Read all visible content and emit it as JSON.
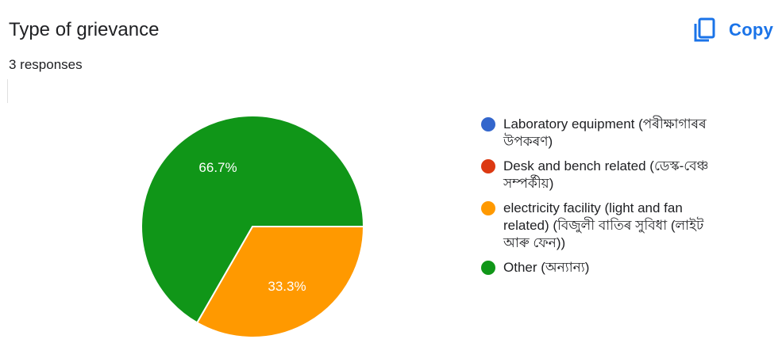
{
  "header": {
    "title": "Type of grievance",
    "responses": "3 responses",
    "copy_label": "Copy",
    "copy_icon": "copy-icon"
  },
  "colors": {
    "accent": "#1a73e8",
    "slices": [
      "#3366cc",
      "#dc3912",
      "#ff9900",
      "#109618"
    ]
  },
  "chart_data": {
    "type": "pie",
    "title": "Type of grievance",
    "categories": [
      "Laboratory equipment (পৰীক্ষাগাৰৰ উপকৰণ)",
      "Desk and bench related (ডেস্ক-বেঞ্চ সম্পৰ্কীয়)",
      "electricity facility (light and fan related) (বিজুলী বাতিৰ সুবিধা (লাইট আৰু ফেন))",
      "Other (অন্যান্য)"
    ],
    "values": [
      0,
      0,
      33.3,
      66.7
    ],
    "labels": [
      "",
      "",
      "33.3%",
      "66.7%"
    ],
    "legend_position": "right"
  }
}
